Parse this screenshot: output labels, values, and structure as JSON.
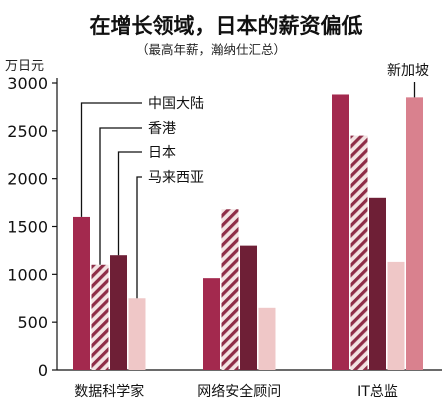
{
  "chart_data": {
    "type": "bar",
    "title": "在增长领域，日本的薪资偏低",
    "subtitle": "（最高年薪，瀚纳仕汇总）",
    "unit_label": "万日元",
    "ylim": [
      0,
      3000
    ],
    "yticks": [
      0,
      500,
      1000,
      1500,
      2000,
      2500,
      3000
    ],
    "grid": false,
    "categories": [
      "数据科学家",
      "网络安全顾问",
      "IT总监"
    ],
    "series": [
      {
        "name": "中国大陆",
        "values": [
          1600,
          960,
          2880
        ],
        "color": "#a3294e",
        "pattern": "solid"
      },
      {
        "name": "香港",
        "values": [
          1100,
          1680,
          2450
        ],
        "color": "#8e2d47",
        "pattern": "hatch"
      },
      {
        "name": "日本",
        "values": [
          1200,
          1300,
          1800
        ],
        "color": "#6e1f36",
        "pattern": "solid"
      },
      {
        "name": "马来西亚",
        "values": [
          750,
          650,
          1130
        ],
        "color": "#efc7c7",
        "pattern": "solid"
      },
      {
        "name": "新加坡",
        "values": [
          null,
          null,
          2850
        ],
        "color": "#d9818e",
        "pattern": "solid"
      }
    ],
    "legend_placement": "callout-labels"
  }
}
